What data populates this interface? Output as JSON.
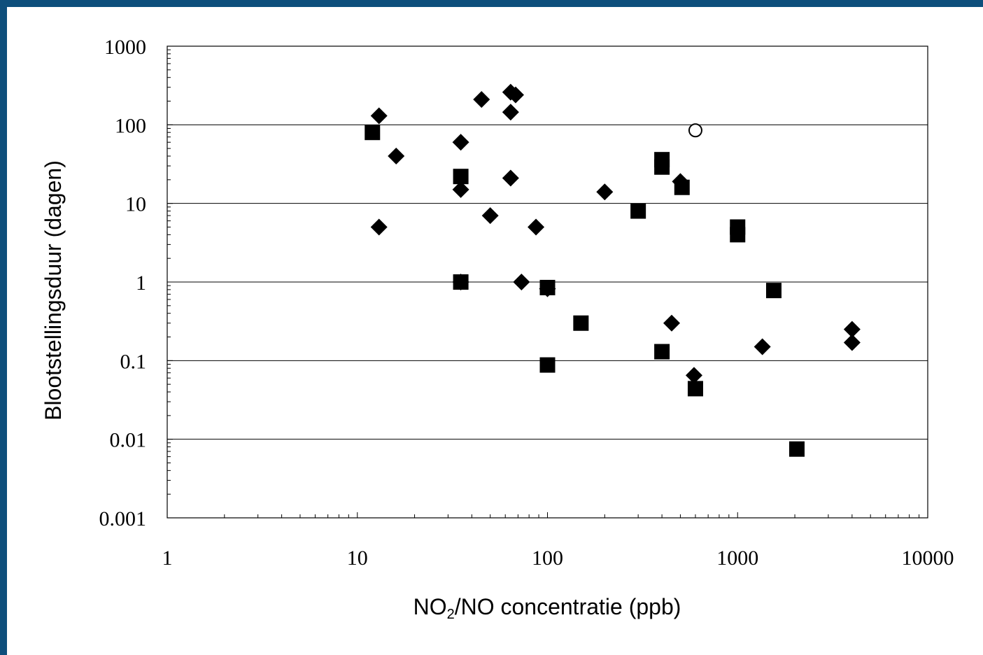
{
  "chart_data": {
    "type": "scatter",
    "title": "",
    "xlabel": {
      "main": "NO",
      "sub": "2",
      "rest": "/NO concentratie (ppb)"
    },
    "ylabel": "Blootstellingsduur (dagen)",
    "x_scale": "log",
    "y_scale": "log",
    "xlim": [
      1,
      10000
    ],
    "ylim": [
      0.001,
      1000
    ],
    "x_ticks": [
      1,
      10,
      100,
      1000,
      10000
    ],
    "x_tick_labels": [
      "1",
      "10",
      "100",
      "1000",
      "10000"
    ],
    "y_ticks": [
      0.001,
      0.01,
      0.1,
      1,
      10,
      100,
      1000
    ],
    "y_tick_labels": [
      "0.001",
      "0.01",
      "0.1",
      "1",
      "10",
      "100",
      "1000"
    ],
    "grid": {
      "horizontal": true,
      "vertical": false
    },
    "colors": {
      "marker": "#000000",
      "grid": "#000000",
      "frame_border": "#0e4f7c"
    },
    "series": [
      {
        "marker": "diamond",
        "points": [
          [
            13,
            130
          ],
          [
            13,
            5
          ],
          [
            16,
            40
          ],
          [
            35,
            60
          ],
          [
            35,
            15
          ],
          [
            35,
            1
          ],
          [
            45,
            210
          ],
          [
            50,
            7
          ],
          [
            64,
            260
          ],
          [
            68,
            240
          ],
          [
            64,
            145
          ],
          [
            64,
            21
          ],
          [
            73,
            1
          ],
          [
            87,
            5
          ],
          [
            100,
            0.82
          ],
          [
            200,
            14
          ],
          [
            450,
            0.3
          ],
          [
            500,
            19
          ],
          [
            590,
            0.065
          ],
          [
            1350,
            0.15
          ],
          [
            4000,
            0.25
          ],
          [
            4000,
            0.17
          ]
        ]
      },
      {
        "marker": "square",
        "points": [
          [
            12,
            80
          ],
          [
            35,
            22
          ],
          [
            35,
            1
          ],
          [
            100,
            0.85
          ],
          [
            100,
            0.088
          ],
          [
            150,
            0.3
          ],
          [
            300,
            8
          ],
          [
            400,
            36
          ],
          [
            400,
            29
          ],
          [
            400,
            0.13
          ],
          [
            510,
            16
          ],
          [
            600,
            0.044
          ],
          [
            1000,
            5
          ],
          [
            1000,
            4
          ],
          [
            1550,
            0.78
          ],
          [
            2050,
            0.0075
          ]
        ]
      },
      {
        "marker": "circle-open",
        "points": [
          [
            600,
            85
          ]
        ]
      }
    ]
  }
}
